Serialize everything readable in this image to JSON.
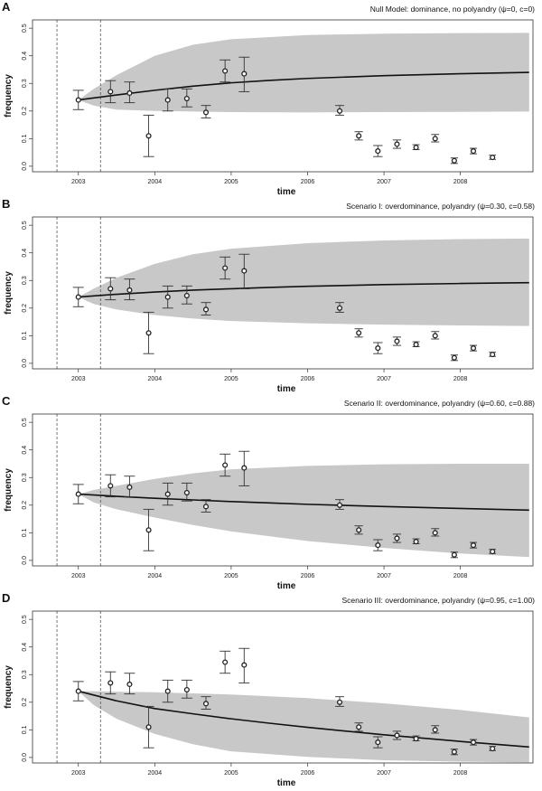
{
  "colors": {
    "band": "#c8c8c8",
    "line": "#111111",
    "point": "#222222",
    "frame": "#333333"
  },
  "chart_data": [
    {
      "type": "line",
      "panel_letter": "A",
      "title": "Null Model: dominance, no polyandry (ψ=0, c=0)",
      "xlabel": "time",
      "ylabel": "frequency",
      "xlim": [
        2002.4,
        2008.95
      ],
      "ylim": [
        -0.02,
        0.53
      ],
      "x_ticks": [
        2003,
        2004,
        2005,
        2006,
        2007,
        2008
      ],
      "x_tick_labels": [
        "2003",
        "2004",
        "2005",
        "2006",
        "2007",
        "2008"
      ],
      "y_ticks": [
        0.0,
        0.1,
        0.2,
        0.3,
        0.4,
        0.5
      ],
      "y_tick_labels": [
        "0.0",
        "0.1",
        "0.2",
        "0.3",
        "0.4",
        "0.5"
      ],
      "vlines": [
        2002.72,
        2003.29
      ],
      "band": {
        "x": [
          2003.0,
          2003.2,
          2003.5,
          2004.0,
          2004.5,
          2005.0,
          2006.0,
          2007.0,
          2008.0,
          2008.9
        ],
        "upper": [
          0.24,
          0.28,
          0.33,
          0.4,
          0.44,
          0.46,
          0.475,
          0.48,
          0.482,
          0.483
        ],
        "lower": [
          0.24,
          0.22,
          0.205,
          0.2,
          0.198,
          0.196,
          0.195,
          0.196,
          0.197,
          0.198
        ]
      },
      "model_line": {
        "x": [
          2003.0,
          2003.5,
          2004.0,
          2004.5,
          2005.0,
          2005.5,
          2006.0,
          2007.0,
          2008.0,
          2008.9
        ],
        "y": [
          0.24,
          0.258,
          0.275,
          0.29,
          0.302,
          0.311,
          0.318,
          0.328,
          0.335,
          0.34
        ]
      },
      "observations": [
        {
          "x": 2003.0,
          "y": 0.24,
          "lo": 0.205,
          "hi": 0.275
        },
        {
          "x": 2003.42,
          "y": 0.27,
          "lo": 0.23,
          "hi": 0.31
        },
        {
          "x": 2003.67,
          "y": 0.265,
          "lo": 0.23,
          "hi": 0.305
        },
        {
          "x": 2003.92,
          "y": 0.11,
          "lo": 0.035,
          "hi": 0.185
        },
        {
          "x": 2004.17,
          "y": 0.24,
          "lo": 0.2,
          "hi": 0.28
        },
        {
          "x": 2004.42,
          "y": 0.245,
          "lo": 0.215,
          "hi": 0.28
        },
        {
          "x": 2004.67,
          "y": 0.195,
          "lo": 0.175,
          "hi": 0.22
        },
        {
          "x": 2004.92,
          "y": 0.345,
          "lo": 0.305,
          "hi": 0.385
        },
        {
          "x": 2005.17,
          "y": 0.335,
          "lo": 0.27,
          "hi": 0.395
        },
        {
          "x": 2006.42,
          "y": 0.2,
          "lo": 0.185,
          "hi": 0.22
        },
        {
          "x": 2006.67,
          "y": 0.11,
          "lo": 0.095,
          "hi": 0.125
        },
        {
          "x": 2006.92,
          "y": 0.055,
          "lo": 0.035,
          "hi": 0.075
        },
        {
          "x": 2007.17,
          "y": 0.08,
          "lo": 0.065,
          "hi": 0.095
        },
        {
          "x": 2007.42,
          "y": 0.068,
          "lo": 0.06,
          "hi": 0.078
        },
        {
          "x": 2007.67,
          "y": 0.1,
          "lo": 0.088,
          "hi": 0.115
        },
        {
          "x": 2007.92,
          "y": 0.02,
          "lo": 0.01,
          "hi": 0.03
        },
        {
          "x": 2008.17,
          "y": 0.055,
          "lo": 0.045,
          "hi": 0.065
        },
        {
          "x": 2008.42,
          "y": 0.032,
          "lo": 0.025,
          "hi": 0.04
        }
      ]
    },
    {
      "type": "line",
      "panel_letter": "B",
      "title": "Scenario I: overdominance, polyandry (ψ=0.30, c=0.58)",
      "xlabel": "time",
      "ylabel": "frequency",
      "xlim": [
        2002.4,
        2008.95
      ],
      "ylim": [
        -0.02,
        0.53
      ],
      "x_ticks": [
        2003,
        2004,
        2005,
        2006,
        2007,
        2008
      ],
      "x_tick_labels": [
        "2003",
        "2004",
        "2005",
        "2006",
        "2007",
        "2008"
      ],
      "y_ticks": [
        0.0,
        0.1,
        0.2,
        0.3,
        0.4,
        0.5
      ],
      "y_tick_labels": [
        "0.0",
        "0.1",
        "0.2",
        "0.3",
        "0.4",
        "0.5"
      ],
      "vlines": [
        2002.72,
        2003.29
      ],
      "band": {
        "x": [
          2003.0,
          2003.2,
          2003.5,
          2004.0,
          2004.5,
          2005.0,
          2006.0,
          2007.0,
          2008.0,
          2008.9
        ],
        "upper": [
          0.24,
          0.27,
          0.31,
          0.36,
          0.395,
          0.415,
          0.435,
          0.445,
          0.45,
          0.452
        ],
        "lower": [
          0.24,
          0.215,
          0.195,
          0.175,
          0.162,
          0.153,
          0.145,
          0.14,
          0.137,
          0.135
        ]
      },
      "model_line": {
        "x": [
          2003.0,
          2003.5,
          2004.0,
          2004.5,
          2005.0,
          2005.5,
          2006.0,
          2007.0,
          2008.0,
          2008.9
        ],
        "y": [
          0.24,
          0.25,
          0.258,
          0.265,
          0.27,
          0.275,
          0.279,
          0.285,
          0.289,
          0.292
        ]
      },
      "observations": [
        {
          "x": 2003.0,
          "y": 0.24,
          "lo": 0.205,
          "hi": 0.275
        },
        {
          "x": 2003.42,
          "y": 0.27,
          "lo": 0.23,
          "hi": 0.31
        },
        {
          "x": 2003.67,
          "y": 0.265,
          "lo": 0.23,
          "hi": 0.305
        },
        {
          "x": 2003.92,
          "y": 0.11,
          "lo": 0.035,
          "hi": 0.185
        },
        {
          "x": 2004.17,
          "y": 0.24,
          "lo": 0.2,
          "hi": 0.28
        },
        {
          "x": 2004.42,
          "y": 0.245,
          "lo": 0.215,
          "hi": 0.28
        },
        {
          "x": 2004.67,
          "y": 0.195,
          "lo": 0.175,
          "hi": 0.22
        },
        {
          "x": 2004.92,
          "y": 0.345,
          "lo": 0.305,
          "hi": 0.385
        },
        {
          "x": 2005.17,
          "y": 0.335,
          "lo": 0.27,
          "hi": 0.395
        },
        {
          "x": 2006.42,
          "y": 0.2,
          "lo": 0.185,
          "hi": 0.22
        },
        {
          "x": 2006.67,
          "y": 0.11,
          "lo": 0.095,
          "hi": 0.125
        },
        {
          "x": 2006.92,
          "y": 0.055,
          "lo": 0.035,
          "hi": 0.075
        },
        {
          "x": 2007.17,
          "y": 0.08,
          "lo": 0.065,
          "hi": 0.095
        },
        {
          "x": 2007.42,
          "y": 0.068,
          "lo": 0.06,
          "hi": 0.078
        },
        {
          "x": 2007.67,
          "y": 0.1,
          "lo": 0.088,
          "hi": 0.115
        },
        {
          "x": 2007.92,
          "y": 0.02,
          "lo": 0.01,
          "hi": 0.03
        },
        {
          "x": 2008.17,
          "y": 0.055,
          "lo": 0.045,
          "hi": 0.065
        },
        {
          "x": 2008.42,
          "y": 0.032,
          "lo": 0.025,
          "hi": 0.04
        }
      ]
    },
    {
      "type": "line",
      "panel_letter": "C",
      "title": "Scenario II: overdominance, polyandry (ψ=0.60, c=0.88)",
      "xlabel": "time",
      "ylabel": "frequency",
      "xlim": [
        2002.4,
        2008.95
      ],
      "ylim": [
        -0.02,
        0.53
      ],
      "x_ticks": [
        2003,
        2004,
        2005,
        2006,
        2007,
        2008
      ],
      "x_tick_labels": [
        "2003",
        "2004",
        "2005",
        "2006",
        "2007",
        "2008"
      ],
      "y_ticks": [
        0.0,
        0.1,
        0.2,
        0.3,
        0.4,
        0.5
      ],
      "y_tick_labels": [
        "0.0",
        "0.1",
        "0.2",
        "0.3",
        "0.4",
        "0.5"
      ],
      "vlines": [
        2002.72,
        2003.29
      ],
      "band": {
        "x": [
          2003.0,
          2003.2,
          2003.5,
          2004.0,
          2004.5,
          2005.0,
          2006.0,
          2007.0,
          2008.0,
          2008.9
        ],
        "upper": [
          0.24,
          0.255,
          0.27,
          0.295,
          0.315,
          0.33,
          0.342,
          0.348,
          0.35,
          0.35
        ],
        "lower": [
          0.24,
          0.21,
          0.185,
          0.155,
          0.128,
          0.105,
          0.07,
          0.045,
          0.025,
          0.012
        ]
      },
      "model_line": {
        "x": [
          2003.0,
          2003.5,
          2004.0,
          2004.5,
          2005.0,
          2005.5,
          2006.0,
          2007.0,
          2008.0,
          2008.9
        ],
        "y": [
          0.24,
          0.232,
          0.225,
          0.219,
          0.213,
          0.208,
          0.203,
          0.195,
          0.188,
          0.182
        ]
      },
      "observations": [
        {
          "x": 2003.0,
          "y": 0.24,
          "lo": 0.205,
          "hi": 0.275
        },
        {
          "x": 2003.42,
          "y": 0.27,
          "lo": 0.23,
          "hi": 0.31
        },
        {
          "x": 2003.67,
          "y": 0.265,
          "lo": 0.23,
          "hi": 0.305
        },
        {
          "x": 2003.92,
          "y": 0.11,
          "lo": 0.035,
          "hi": 0.185
        },
        {
          "x": 2004.17,
          "y": 0.24,
          "lo": 0.2,
          "hi": 0.28
        },
        {
          "x": 2004.42,
          "y": 0.245,
          "lo": 0.215,
          "hi": 0.28
        },
        {
          "x": 2004.67,
          "y": 0.195,
          "lo": 0.175,
          "hi": 0.22
        },
        {
          "x": 2004.92,
          "y": 0.345,
          "lo": 0.305,
          "hi": 0.385
        },
        {
          "x": 2005.17,
          "y": 0.335,
          "lo": 0.27,
          "hi": 0.395
        },
        {
          "x": 2006.42,
          "y": 0.2,
          "lo": 0.185,
          "hi": 0.22
        },
        {
          "x": 2006.67,
          "y": 0.11,
          "lo": 0.095,
          "hi": 0.125
        },
        {
          "x": 2006.92,
          "y": 0.055,
          "lo": 0.035,
          "hi": 0.075
        },
        {
          "x": 2007.17,
          "y": 0.08,
          "lo": 0.065,
          "hi": 0.095
        },
        {
          "x": 2007.42,
          "y": 0.068,
          "lo": 0.06,
          "hi": 0.078
        },
        {
          "x": 2007.67,
          "y": 0.1,
          "lo": 0.088,
          "hi": 0.115
        },
        {
          "x": 2007.92,
          "y": 0.02,
          "lo": 0.01,
          "hi": 0.03
        },
        {
          "x": 2008.17,
          "y": 0.055,
          "lo": 0.045,
          "hi": 0.065
        },
        {
          "x": 2008.42,
          "y": 0.032,
          "lo": 0.025,
          "hi": 0.04
        }
      ]
    },
    {
      "type": "line",
      "panel_letter": "D",
      "title": "Scenario III: overdominance, polyandry (ψ=0.95, c=1.00)",
      "xlabel": "time",
      "ylabel": "frequency",
      "xlim": [
        2002.4,
        2008.95
      ],
      "ylim": [
        -0.02,
        0.53
      ],
      "x_ticks": [
        2003,
        2004,
        2005,
        2006,
        2007,
        2008
      ],
      "x_tick_labels": [
        "2003",
        "2004",
        "2005",
        "2006",
        "2007",
        "2008"
      ],
      "y_ticks": [
        0.0,
        0.1,
        0.2,
        0.3,
        0.4,
        0.5
      ],
      "y_tick_labels": [
        "0.0",
        "0.1",
        "0.2",
        "0.3",
        "0.4",
        "0.5"
      ],
      "vlines": [
        2002.72,
        2003.29
      ],
      "band": {
        "x": [
          2003.0,
          2003.2,
          2003.5,
          2004.0,
          2004.5,
          2005.0,
          2006.0,
          2007.0,
          2008.0,
          2008.9
        ],
        "upper": [
          0.24,
          0.24,
          0.238,
          0.236,
          0.232,
          0.228,
          0.215,
          0.196,
          0.172,
          0.145
        ],
        "lower": [
          0.24,
          0.19,
          0.14,
          0.085,
          0.048,
          0.022,
          0.002,
          -0.01,
          -0.015,
          -0.018
        ]
      },
      "model_line": {
        "x": [
          2003.0,
          2003.5,
          2004.0,
          2004.5,
          2005.0,
          2005.5,
          2006.0,
          2007.0,
          2008.0,
          2008.9
        ],
        "y": [
          0.24,
          0.205,
          0.177,
          0.158,
          0.14,
          0.124,
          0.109,
          0.082,
          0.058,
          0.038
        ]
      },
      "observations": [
        {
          "x": 2003.0,
          "y": 0.24,
          "lo": 0.205,
          "hi": 0.275
        },
        {
          "x": 2003.42,
          "y": 0.27,
          "lo": 0.23,
          "hi": 0.31
        },
        {
          "x": 2003.67,
          "y": 0.265,
          "lo": 0.23,
          "hi": 0.305
        },
        {
          "x": 2003.92,
          "y": 0.11,
          "lo": 0.035,
          "hi": 0.185
        },
        {
          "x": 2004.17,
          "y": 0.24,
          "lo": 0.2,
          "hi": 0.28
        },
        {
          "x": 2004.42,
          "y": 0.245,
          "lo": 0.215,
          "hi": 0.28
        },
        {
          "x": 2004.67,
          "y": 0.195,
          "lo": 0.175,
          "hi": 0.22
        },
        {
          "x": 2004.92,
          "y": 0.345,
          "lo": 0.305,
          "hi": 0.385
        },
        {
          "x": 2005.17,
          "y": 0.335,
          "lo": 0.27,
          "hi": 0.395
        },
        {
          "x": 2006.42,
          "y": 0.2,
          "lo": 0.185,
          "hi": 0.22
        },
        {
          "x": 2006.67,
          "y": 0.11,
          "lo": 0.095,
          "hi": 0.125
        },
        {
          "x": 2006.92,
          "y": 0.055,
          "lo": 0.035,
          "hi": 0.075
        },
        {
          "x": 2007.17,
          "y": 0.08,
          "lo": 0.065,
          "hi": 0.095
        },
        {
          "x": 2007.42,
          "y": 0.068,
          "lo": 0.06,
          "hi": 0.078
        },
        {
          "x": 2007.67,
          "y": 0.1,
          "lo": 0.088,
          "hi": 0.115
        },
        {
          "x": 2007.92,
          "y": 0.02,
          "lo": 0.01,
          "hi": 0.03
        },
        {
          "x": 2008.17,
          "y": 0.055,
          "lo": 0.045,
          "hi": 0.065
        },
        {
          "x": 2008.42,
          "y": 0.032,
          "lo": 0.025,
          "hi": 0.04
        }
      ]
    }
  ]
}
